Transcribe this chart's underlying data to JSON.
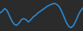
{
  "x": [
    0,
    1,
    2,
    3,
    4,
    5,
    6,
    7,
    8,
    9,
    10,
    11,
    12,
    13,
    14,
    15,
    16,
    17,
    18,
    19,
    20,
    21,
    22,
    23,
    24,
    25,
    26,
    27,
    28,
    29,
    30,
    31,
    32,
    33,
    34,
    35
  ],
  "y": [
    0.2,
    0.5,
    1.0,
    0.6,
    -0.3,
    -1.2,
    -1.8,
    -2.0,
    -1.6,
    -1.0,
    -0.8,
    -1.0,
    -1.4,
    -1.0,
    -0.5,
    -0.2,
    0.2,
    0.5,
    0.8,
    1.1,
    1.4,
    1.6,
    1.8,
    1.9,
    1.7,
    1.3,
    0.5,
    -0.5,
    -1.5,
    -2.2,
    -2.4,
    -2.0,
    -1.2,
    -0.2,
    0.6,
    1.1
  ],
  "line_color": "#2b88d0",
  "linewidth": 1.4,
  "background_color": "#2b2b2b",
  "ylim": [
    -3.0,
    2.5
  ]
}
